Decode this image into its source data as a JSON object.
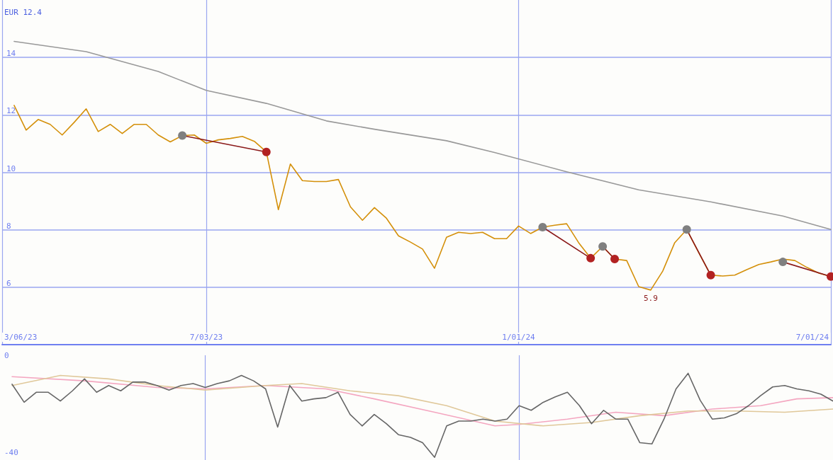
{
  "chart_data": [
    {
      "type": "line",
      "x": [
        "2023-03-13",
        "2023-03-20",
        "2023-03-27",
        "2023-04-03",
        "2023-04-10",
        "2023-04-17",
        "2023-04-24",
        "2023-05-01",
        "2023-05-08",
        "2023-05-15",
        "2023-05-22",
        "2023-05-29",
        "2023-06-05",
        "2023-06-12",
        "2023-06-19",
        "2023-06-26",
        "2023-07-03",
        "2023-07-10",
        "2023-07-17",
        "2023-07-24",
        "2023-07-31",
        "2023-08-07",
        "2023-08-14",
        "2023-08-21",
        "2023-08-28",
        "2023-09-04",
        "2023-09-11",
        "2023-09-18",
        "2023-09-25",
        "2023-10-02",
        "2023-10-09",
        "2023-10-16",
        "2023-10-23",
        "2023-10-30",
        "2023-11-06",
        "2023-11-13",
        "2023-11-20",
        "2023-11-27",
        "2023-12-04",
        "2023-12-11",
        "2023-12-18",
        "2023-12-25",
        "2024-01-01",
        "2024-01-08",
        "2024-01-15",
        "2024-01-22",
        "2024-01-29",
        "2024-02-05",
        "2024-02-12",
        "2024-02-19",
        "2024-02-26",
        "2024-03-04",
        "2024-03-11",
        "2024-03-18",
        "2024-03-25",
        "2024-04-01",
        "2024-04-08",
        "2024-04-15",
        "2024-04-22",
        "2024-04-29",
        "2024-05-06",
        "2024-05-13",
        "2024-05-20",
        "2024-05-27",
        "2024-06-03",
        "2024-06-10",
        "2024-06-17",
        "2024-06-24",
        "2024-07-01"
      ],
      "series": [
        {
          "color": "#d4900a",
          "values": [
            12.33,
            11.47,
            11.84,
            11.67,
            11.3,
            11.74,
            12.21,
            11.42,
            11.67,
            11.35,
            11.67,
            11.67,
            11.3,
            11.06,
            11.28,
            11.3,
            11.01,
            11.13,
            11.18,
            11.25,
            11.08,
            10.71,
            8.7,
            10.29,
            9.71,
            9.68,
            9.68,
            9.75,
            8.8,
            8.33,
            8.77,
            8.4,
            7.79,
            7.57,
            7.33,
            6.66,
            7.74,
            7.91,
            7.87,
            7.91,
            7.69,
            7.69,
            8.13,
            7.87,
            8.09,
            8.16,
            8.21,
            7.55,
            7.01,
            7.42,
            6.98,
            6.93,
            6.02,
            5.9,
            6.56,
            7.55,
            8.01,
            7.2,
            6.42,
            6.39,
            6.42,
            6.61,
            6.79,
            6.88,
            6.98,
            6.93,
            6.69,
            6.49,
            6.37
          ]
        },
        {
          "color": "#999999",
          "x": [
            "2023-03-13",
            "2023-04-24",
            "2023-06-05",
            "2023-07-03",
            "2023-08-07",
            "2023-09-11",
            "2023-10-09",
            "2023-11-20",
            "2023-12-18",
            "2024-01-29",
            "2024-03-11",
            "2024-04-22",
            "2024-06-03",
            "2024-07-01"
          ],
          "values": [
            14.56,
            14.2,
            13.51,
            12.85,
            12.4,
            11.79,
            11.5,
            11.1,
            10.69,
            10.02,
            9.39,
            8.97,
            8.48,
            8.01
          ]
        },
        {
          "type": "line",
          "color": "#8b1a1a",
          "x": [
            "2023-06-19",
            "2023-08-07"
          ],
          "values": [
            11.28,
            10.71
          ]
        },
        {
          "type": "line",
          "color": "#8b1a1a",
          "x": [
            "2024-01-15",
            "2024-02-12"
          ],
          "values": [
            8.09,
            7.01
          ]
        },
        {
          "type": "line",
          "color": "#8b1a1a",
          "x": [
            "2024-02-19",
            "2024-02-26"
          ],
          "values": [
            7.42,
            6.98
          ]
        },
        {
          "type": "line",
          "color": "#8b1a1a",
          "x": [
            "2024-04-08",
            "2024-04-22"
          ],
          "values": [
            8.01,
            6.42
          ]
        },
        {
          "type": "line",
          "color": "#8b1a1a",
          "x": [
            "2024-06-03",
            "2024-07-01"
          ],
          "values": [
            6.88,
            6.37
          ]
        },
        {
          "type": "scatter",
          "color": "#808080",
          "x": [
            "2023-06-19",
            "2024-01-15",
            "2024-02-19",
            "2024-04-08",
            "2024-06-03"
          ],
          "values": [
            11.28,
            8.09,
            7.42,
            8.01,
            6.88
          ]
        },
        {
          "type": "scatter",
          "color": "#b22222",
          "x": [
            "2023-08-07",
            "2024-02-12",
            "2024-02-26",
            "2024-04-22",
            "2024-07-01"
          ],
          "values": [
            10.71,
            7.01,
            6.98,
            6.42,
            6.37
          ]
        }
      ],
      "xlim": [
        "2023-03-06",
        "2024-07-01"
      ],
      "xticks": [
        {
          "value": "2023-03-06",
          "label": "3/06/23"
        },
        {
          "value": "2023-07-03",
          "label": "7/03/23"
        },
        {
          "value": "2024-01-01",
          "label": "1/01/24"
        },
        {
          "value": "2024-07-01",
          "label": "7/01/24"
        }
      ],
      "ylim": [
        4,
        16
      ],
      "yticks": [
        6,
        8,
        10,
        12,
        14
      ],
      "grid": true,
      "annotations": [
        "EUR 12.4",
        {
          "text": "5.9",
          "x": "2024-03-18",
          "y": 5.9
        }
      ]
    },
    {
      "type": "line",
      "x": [
        "2023-03-13",
        "2023-03-20",
        "2023-03-27",
        "2023-04-03",
        "2023-04-10",
        "2023-04-17",
        "2023-04-24",
        "2023-05-01",
        "2023-05-08",
        "2023-05-15",
        "2023-05-22",
        "2023-05-29",
        "2023-06-05",
        "2023-06-12",
        "2023-06-19",
        "2023-06-26",
        "2023-07-03",
        "2023-07-10",
        "2023-07-17",
        "2023-07-24",
        "2023-07-31",
        "2023-08-07",
        "2023-08-14",
        "2023-08-21",
        "2023-08-28",
        "2023-09-04",
        "2023-09-11",
        "2023-09-18",
        "2023-09-25",
        "2023-10-02",
        "2023-10-09",
        "2023-10-16",
        "2023-10-23",
        "2023-10-30",
        "2023-11-06",
        "2023-11-13",
        "2023-11-20",
        "2023-11-27",
        "2023-12-04",
        "2023-12-11",
        "2023-12-18",
        "2023-12-25",
        "2024-01-01",
        "2024-01-08",
        "2024-01-15",
        "2024-01-22",
        "2024-01-29",
        "2024-02-05",
        "2024-02-12",
        "2024-02-19",
        "2024-02-26",
        "2024-03-04",
        "2024-03-11",
        "2024-03-18",
        "2024-03-25",
        "2024-04-01",
        "2024-04-08",
        "2024-04-15",
        "2024-04-22",
        "2024-04-29",
        "2024-05-06",
        "2024-05-13",
        "2024-05-20",
        "2024-05-27",
        "2024-06-03",
        "2024-06-10",
        "2024-06-17",
        "2024-06-24",
        "2024-07-01"
      ],
      "series": [
        {
          "color": "#f4a6c0",
          "x": [
            "2023-03-13",
            "2023-04-24",
            "2023-06-05",
            "2023-07-03",
            "2023-08-07",
            "2023-09-11",
            "2023-10-09",
            "2023-11-13",
            "2023-12-18",
            "2024-01-01",
            "2024-01-29",
            "2024-02-26",
            "2024-03-25",
            "2024-04-22",
            "2024-05-20",
            "2024-06-10",
            "2024-07-01"
          ],
          "values": [
            -8.8,
            -10.5,
            -13.2,
            -13.8,
            -12.4,
            -13.8,
            -17.9,
            -23.4,
            -29.0,
            -28.4,
            -26.2,
            -23.4,
            -24.8,
            -22.1,
            -20.7,
            -17.9,
            -17.4
          ]
        },
        {
          "color": "#e0c89a",
          "x": [
            "2023-03-13",
            "2023-04-10",
            "2023-05-08",
            "2023-06-05",
            "2023-07-03",
            "2023-08-07",
            "2023-08-28",
            "2023-09-25",
            "2023-10-23",
            "2023-11-20",
            "2023-12-18",
            "2024-01-15",
            "2024-02-12",
            "2024-03-11",
            "2024-04-08",
            "2024-05-06",
            "2024-06-03",
            "2024-07-01"
          ],
          "values": [
            -12.4,
            -8.3,
            -9.7,
            -12.4,
            -14.3,
            -12.4,
            -11.6,
            -14.6,
            -16.6,
            -20.7,
            -27.0,
            -29.0,
            -27.6,
            -24.8,
            -22.9,
            -22.9,
            -23.4,
            -22.1
          ]
        },
        {
          "color": "#666666",
          "values": [
            -11.9,
            -19.3,
            -15.2,
            -15.2,
            -18.8,
            -14.6,
            -9.7,
            -15.2,
            -12.4,
            -14.6,
            -11.0,
            -11.0,
            -12.4,
            -14.3,
            -12.4,
            -11.6,
            -13.2,
            -11.6,
            -10.5,
            -8.3,
            -10.5,
            -13.8,
            -29.5,
            -12.4,
            -18.8,
            -17.9,
            -17.4,
            -15.2,
            -24.3,
            -29.0,
            -24.3,
            -28.1,
            -32.6,
            -33.7,
            -35.9,
            -41.9,
            -29.0,
            -27.0,
            -27.0,
            -26.2,
            -27.0,
            -26.2,
            -20.7,
            -22.6,
            -19.3,
            -17.1,
            -15.2,
            -20.7,
            -28.1,
            -22.6,
            -26.2,
            -26.2,
            -35.9,
            -36.4,
            -26.2,
            -13.8,
            -7.4,
            -18.5,
            -26.2,
            -25.7,
            -24.0,
            -20.7,
            -16.6,
            -13.0,
            -12.4,
            -13.8,
            -14.6,
            -16.0,
            -18.8
          ]
        }
      ],
      "xlim": [
        "2023-03-06",
        "2024-07-01"
      ],
      "xticks": [
        {
          "value": "2023-07-03",
          "label": null
        },
        {
          "value": "2024-01-01",
          "label": null
        }
      ],
      "ylim": [
        -43,
        0
      ],
      "yticks": [
        0,
        -40
      ],
      "grid": "x",
      "tick_labels": "y"
    }
  ]
}
